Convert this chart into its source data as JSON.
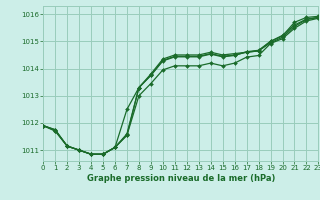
{
  "title": "Graphe pression niveau de la mer (hPa)",
  "bg_color": "#cceee8",
  "grid_color": "#99ccbb",
  "line_color": "#1a6b2a",
  "xlim": [
    0,
    23
  ],
  "ylim": [
    1010.6,
    1016.3
  ],
  "yticks": [
    1011,
    1012,
    1013,
    1014,
    1015,
    1016
  ],
  "xticks": [
    0,
    1,
    2,
    3,
    4,
    5,
    6,
    7,
    8,
    9,
    10,
    11,
    12,
    13,
    14,
    15,
    16,
    17,
    18,
    19,
    20,
    21,
    22,
    23
  ],
  "series": [
    [
      1011.9,
      1011.75,
      1011.15,
      1011.0,
      1010.85,
      1010.85,
      1011.1,
      1012.45,
      1013.35,
      1013.85,
      1014.35,
      1014.5,
      1014.5,
      1014.5,
      1014.6,
      1014.5,
      1014.55,
      1014.6,
      1014.65,
      1015.05,
      1015.3,
      1015.6,
      1015.85,
      1015.9
    ],
    [
      1011.9,
      1011.75,
      1011.15,
      1011.0,
      1010.85,
      1010.85,
      1011.1,
      1011.55,
      1013.35,
      1013.8,
      1014.3,
      1014.45,
      1014.45,
      1014.45,
      1014.55,
      1014.45,
      1014.5,
      1014.6,
      1014.65,
      1014.95,
      1015.2,
      1015.6,
      1015.8,
      1015.9
    ],
    [
      1011.9,
      1011.75,
      1011.15,
      1011.0,
      1010.85,
      1010.85,
      1011.1,
      1011.55,
      1013.35,
      1013.8,
      1014.3,
      1014.45,
      1014.45,
      1014.45,
      1014.55,
      1014.45,
      1014.5,
      1014.65,
      1014.7,
      1015.05,
      1015.25,
      1015.65,
      1015.82,
      1015.9
    ],
    [
      1011.9,
      1011.7,
      1011.15,
      1011.0,
      1010.85,
      1010.85,
      1011.1,
      1011.55,
      1013.05,
      1013.45,
      1014.0,
      1014.15,
      1014.15,
      1014.15,
      1014.25,
      1014.15,
      1014.25,
      1014.45,
      1014.5,
      1014.95,
      1015.1,
      1015.45,
      1015.75,
      1015.85
    ]
  ],
  "series_one": [
    1011.9,
    1011.7,
    1011.15,
    1011.0,
    1010.85,
    1010.85,
    1011.1,
    1012.5,
    1013.2,
    1013.8,
    1014.3,
    1014.45,
    1014.45,
    1014.45,
    1014.55,
    1014.45,
    1014.5,
    1014.6,
    1014.65,
    1015.05,
    1015.25,
    1015.65,
    1015.85,
    1015.9
  ],
  "xlabel_fontsize": 6,
  "tick_fontsize": 5
}
